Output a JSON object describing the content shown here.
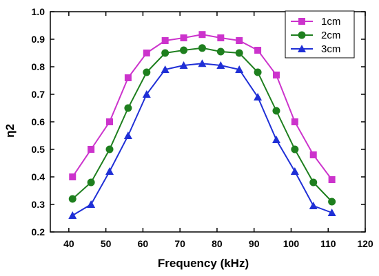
{
  "chart_data": {
    "type": "line",
    "title": "",
    "xlabel": "Frequency (kHz)",
    "ylabel": "η2",
    "xlim": [
      35,
      120
    ],
    "ylim": [
      0.2,
      1.0
    ],
    "xticks": [
      40,
      50,
      60,
      70,
      80,
      90,
      100,
      110,
      120
    ],
    "yticks": [
      0.2,
      0.3,
      0.4,
      0.5,
      0.6,
      0.7,
      0.8,
      0.9,
      1.0
    ],
    "ytick_labels": [
      "0.2",
      "0.3",
      "0.4",
      "0.5",
      "0.6",
      "0.7",
      "0.8",
      "0.9",
      "1.0"
    ],
    "grid": false,
    "legend_position": "top-right",
    "x": [
      41,
      46,
      51,
      56,
      61,
      66,
      71,
      76,
      81,
      86,
      91,
      96,
      101,
      106,
      111
    ],
    "series": [
      {
        "name": "1cm",
        "color": "#cc33cc",
        "marker": "square",
        "values": [
          0.4,
          0.5,
          0.6,
          0.76,
          0.85,
          0.895,
          0.905,
          0.917,
          0.905,
          0.895,
          0.86,
          0.77,
          0.6,
          0.48,
          0.39
        ]
      },
      {
        "name": "2cm",
        "color": "#1e7f1e",
        "marker": "circle",
        "values": [
          0.32,
          0.38,
          0.5,
          0.65,
          0.78,
          0.85,
          0.86,
          0.868,
          0.855,
          0.85,
          0.78,
          0.64,
          0.5,
          0.38,
          0.31
        ]
      },
      {
        "name": "3cm",
        "color": "#1f2fd6",
        "marker": "triangle",
        "values": [
          0.26,
          0.3,
          0.42,
          0.55,
          0.7,
          0.79,
          0.805,
          0.812,
          0.805,
          0.79,
          0.69,
          0.535,
          0.42,
          0.295,
          0.27
        ]
      }
    ]
  }
}
